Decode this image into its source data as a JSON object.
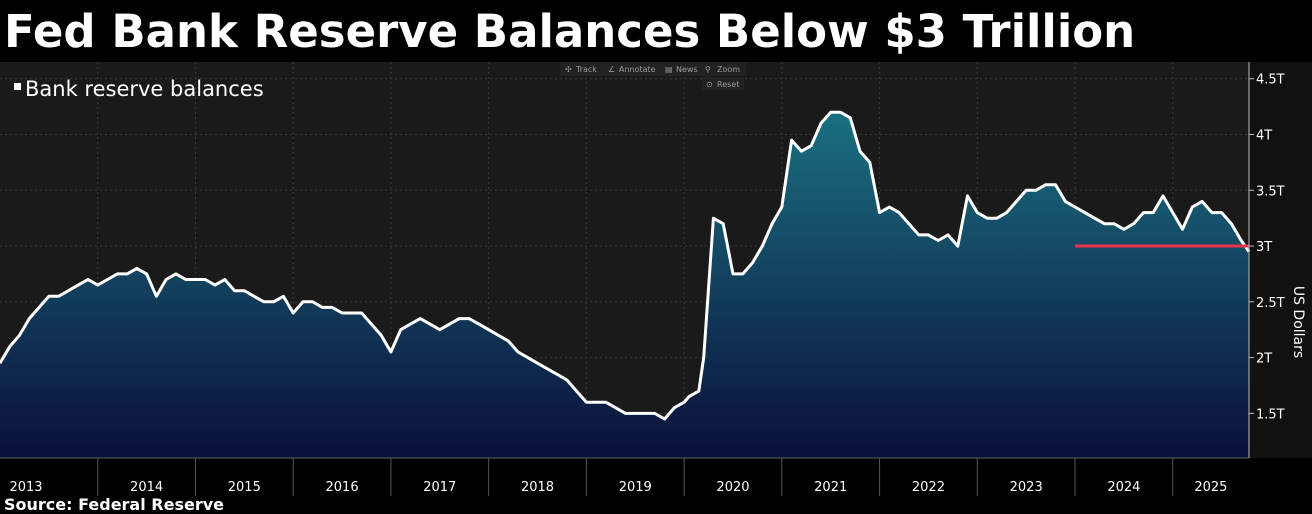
{
  "title": "Fed Bank Reserve Balances Below $3 Trillion",
  "source": "Source: Federal Reserve",
  "toolbar": {
    "track": "Track",
    "annotate": "Annotate",
    "news": "News",
    "zoom": "Zoom",
    "reset": "Reset"
  },
  "colors": {
    "background": "#1a1a1a",
    "line": "#ffffff",
    "fill_top": "#1a7080",
    "fill_bottom": "#0a0f3a",
    "threshold": "#e8334a",
    "grid": "#3a3a3a"
  },
  "chart_data": {
    "type": "area",
    "legend": "Bank reserve balances",
    "legend_position": "top-left",
    "ylabel": "US Dollars",
    "y_ticks": [
      {
        "value": 1.5,
        "label": "1.5T"
      },
      {
        "value": 2,
        "label": "2T"
      },
      {
        "value": 2.5,
        "label": "2.5T"
      },
      {
        "value": 3,
        "label": "3T"
      },
      {
        "value": 3.5,
        "label": "3.5T"
      },
      {
        "value": 4,
        "label": "4T"
      },
      {
        "value": 4.5,
        "label": "4.5T"
      }
    ],
    "ylim": [
      1.1,
      4.65
    ],
    "xlim": [
      2013.0,
      2025.78
    ],
    "x_ticks": [
      "2013",
      "2014",
      "2015",
      "2016",
      "2017",
      "2018",
      "2019",
      "2020",
      "2021",
      "2022",
      "2023",
      "2024",
      "2025"
    ],
    "grid": true,
    "series": [
      {
        "name": "Bank reserve balances",
        "x": [
          2013.0,
          2013.1,
          2013.2,
          2013.3,
          2013.4,
          2013.5,
          2013.6,
          2013.7,
          2013.8,
          2013.9,
          2014.0,
          2014.1,
          2014.2,
          2014.3,
          2014.4,
          2014.5,
          2014.6,
          2014.7,
          2014.8,
          2014.9,
          2015.0,
          2015.1,
          2015.2,
          2015.3,
          2015.4,
          2015.5,
          2015.6,
          2015.7,
          2015.8,
          2015.9,
          2016.0,
          2016.1,
          2016.2,
          2016.3,
          2016.4,
          2016.5,
          2016.6,
          2016.7,
          2016.8,
          2016.9,
          2017.0,
          2017.1,
          2017.2,
          2017.3,
          2017.4,
          2017.5,
          2017.6,
          2017.7,
          2017.8,
          2017.9,
          2018.0,
          2018.1,
          2018.2,
          2018.3,
          2018.4,
          2018.5,
          2018.6,
          2018.7,
          2018.8,
          2018.9,
          2019.0,
          2019.1,
          2019.2,
          2019.3,
          2019.4,
          2019.5,
          2019.6,
          2019.7,
          2019.8,
          2019.9,
          2020.0,
          2020.05,
          2020.15,
          2020.2,
          2020.3,
          2020.4,
          2020.5,
          2020.6,
          2020.7,
          2020.8,
          2020.9,
          2021.0,
          2021.1,
          2021.2,
          2021.3,
          2021.4,
          2021.5,
          2021.6,
          2021.7,
          2021.8,
          2021.9,
          2022.0,
          2022.1,
          2022.2,
          2022.3,
          2022.4,
          2022.5,
          2022.6,
          2022.7,
          2022.8,
          2022.9,
          2023.0,
          2023.1,
          2023.2,
          2023.3,
          2023.4,
          2023.5,
          2023.6,
          2023.7,
          2023.8,
          2023.9,
          2024.0,
          2024.1,
          2024.2,
          2024.3,
          2024.4,
          2024.5,
          2024.6,
          2024.7,
          2024.8,
          2024.9,
          2025.0,
          2025.1,
          2025.2,
          2025.3,
          2025.4,
          2025.5,
          2025.6,
          2025.7,
          2025.78
        ],
        "values": [
          1.95,
          2.1,
          2.2,
          2.35,
          2.45,
          2.55,
          2.55,
          2.6,
          2.65,
          2.7,
          2.65,
          2.7,
          2.75,
          2.75,
          2.8,
          2.75,
          2.55,
          2.7,
          2.75,
          2.7,
          2.7,
          2.7,
          2.65,
          2.7,
          2.6,
          2.6,
          2.55,
          2.5,
          2.5,
          2.55,
          2.4,
          2.5,
          2.5,
          2.45,
          2.45,
          2.4,
          2.4,
          2.4,
          2.3,
          2.2,
          2.05,
          2.25,
          2.3,
          2.35,
          2.3,
          2.25,
          2.3,
          2.35,
          2.35,
          2.3,
          2.25,
          2.2,
          2.15,
          2.05,
          2.0,
          1.95,
          1.9,
          1.85,
          1.8,
          1.7,
          1.6,
          1.6,
          1.6,
          1.55,
          1.5,
          1.5,
          1.5,
          1.5,
          1.45,
          1.55,
          1.6,
          1.65,
          1.7,
          2.0,
          3.25,
          3.2,
          2.75,
          2.75,
          2.85,
          3.0,
          3.2,
          3.35,
          3.95,
          3.85,
          3.9,
          4.1,
          4.2,
          4.2,
          4.15,
          3.85,
          3.75,
          3.3,
          3.35,
          3.3,
          3.2,
          3.1,
          3.1,
          3.05,
          3.1,
          3.0,
          3.45,
          3.3,
          3.25,
          3.25,
          3.3,
          3.4,
          3.5,
          3.5,
          3.55,
          3.55,
          3.4,
          3.35,
          3.3,
          3.25,
          3.2,
          3.2,
          3.15,
          3.2,
          3.3,
          3.3,
          3.45,
          3.3,
          3.15,
          3.35,
          3.4,
          3.3,
          3.3,
          3.2,
          3.05,
          2.95
        ]
      }
    ],
    "reference_line": {
      "value": 3.0,
      "x_start": 2024.0,
      "x_end": 2025.78
    }
  }
}
